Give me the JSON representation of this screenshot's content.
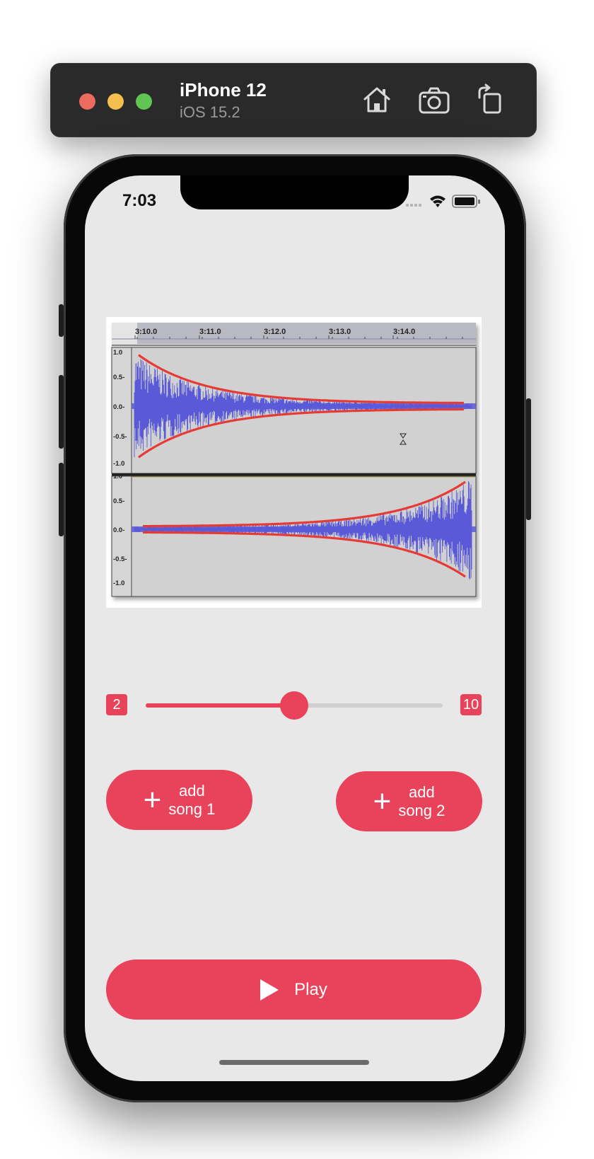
{
  "simulator": {
    "device_name": "iPhone 12",
    "os_version": "iOS 15.2",
    "toolbar_icons": [
      "home-icon",
      "screenshot-icon",
      "rotate-icon"
    ]
  },
  "status_bar": {
    "time": "7:03",
    "icons": [
      "cellular-icon",
      "wifi-icon",
      "battery-icon"
    ]
  },
  "waveform_image": {
    "time_ticks": [
      "3:10.0",
      "3:11.0",
      "3:12.0",
      "3:13.0",
      "3:14.0"
    ],
    "amplitude_ticks": [
      "1.0",
      "0.5-",
      "0.0-",
      "-0.5-",
      "-1.0"
    ]
  },
  "slider": {
    "min_label": "2",
    "max_label": "10",
    "value_fraction": 0.5
  },
  "buttons": {
    "add_song_1_line1": "add",
    "add_song_1_line2": "song 1",
    "add_song_2_line1": "add",
    "add_song_2_line2": "song 2",
    "add_symbol": "+",
    "play_label": "Play"
  },
  "colors": {
    "accent": "#e8435a",
    "screen_background": "#e9e8e9",
    "waveform_blue": "#5a5ad8",
    "envelope_red": "#e63a35"
  }
}
